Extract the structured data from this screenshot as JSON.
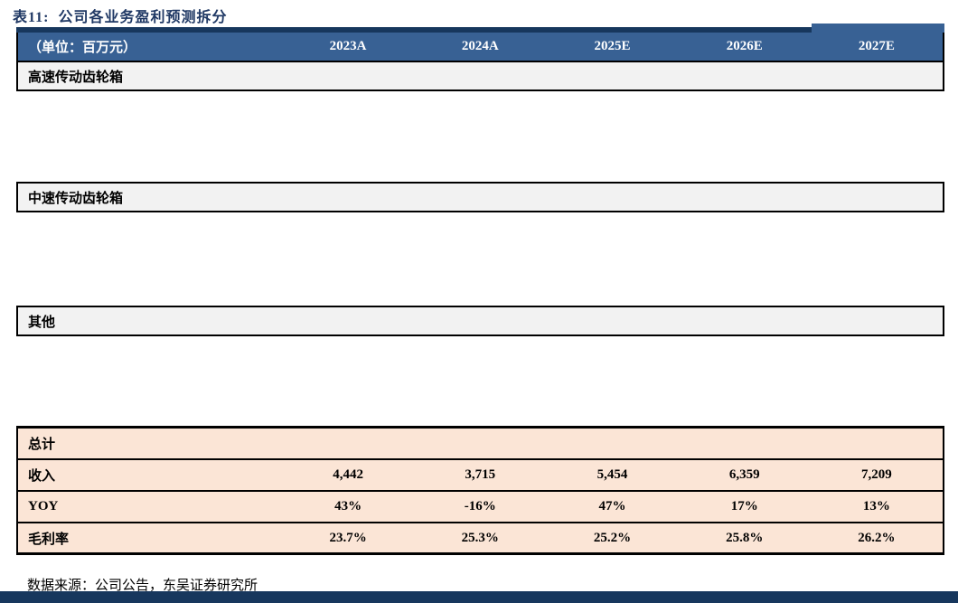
{
  "caption": "表11:  公司各业务盈利预测拆分",
  "header": {
    "unit_label": "（单位：百万元）",
    "columns": [
      "2023A",
      "2024A",
      "2025E",
      "2026E",
      "2027E"
    ]
  },
  "sections": [
    {
      "label": "高速传动齿轮箱"
    },
    {
      "label": "中速传动齿轮箱"
    },
    {
      "label": "其他"
    }
  ],
  "total": {
    "label": "总计",
    "rows": [
      {
        "label": "收入",
        "values": [
          "4,442",
          "3,715",
          "5,454",
          "6,359",
          "7,209"
        ]
      },
      {
        "label": "YOY",
        "values": [
          "43%",
          "-16%",
          "47%",
          "17%",
          "13%"
        ]
      },
      {
        "label": "毛利率",
        "values": [
          "23.7%",
          "25.3%",
          "25.2%",
          "25.8%",
          "26.2%"
        ]
      }
    ]
  },
  "footer": {
    "source": "数据来源：公司公告，东吴证券研究所"
  },
  "colors": {
    "caption_text": "#1F3864",
    "header_bg": "#386194",
    "header_text": "#FFFFFF",
    "accent_navy_bar": "#17375D",
    "section_row_bg": "#F2F2F2",
    "total_block_bg": "#FBE5D6",
    "rule_border": "#000000"
  }
}
